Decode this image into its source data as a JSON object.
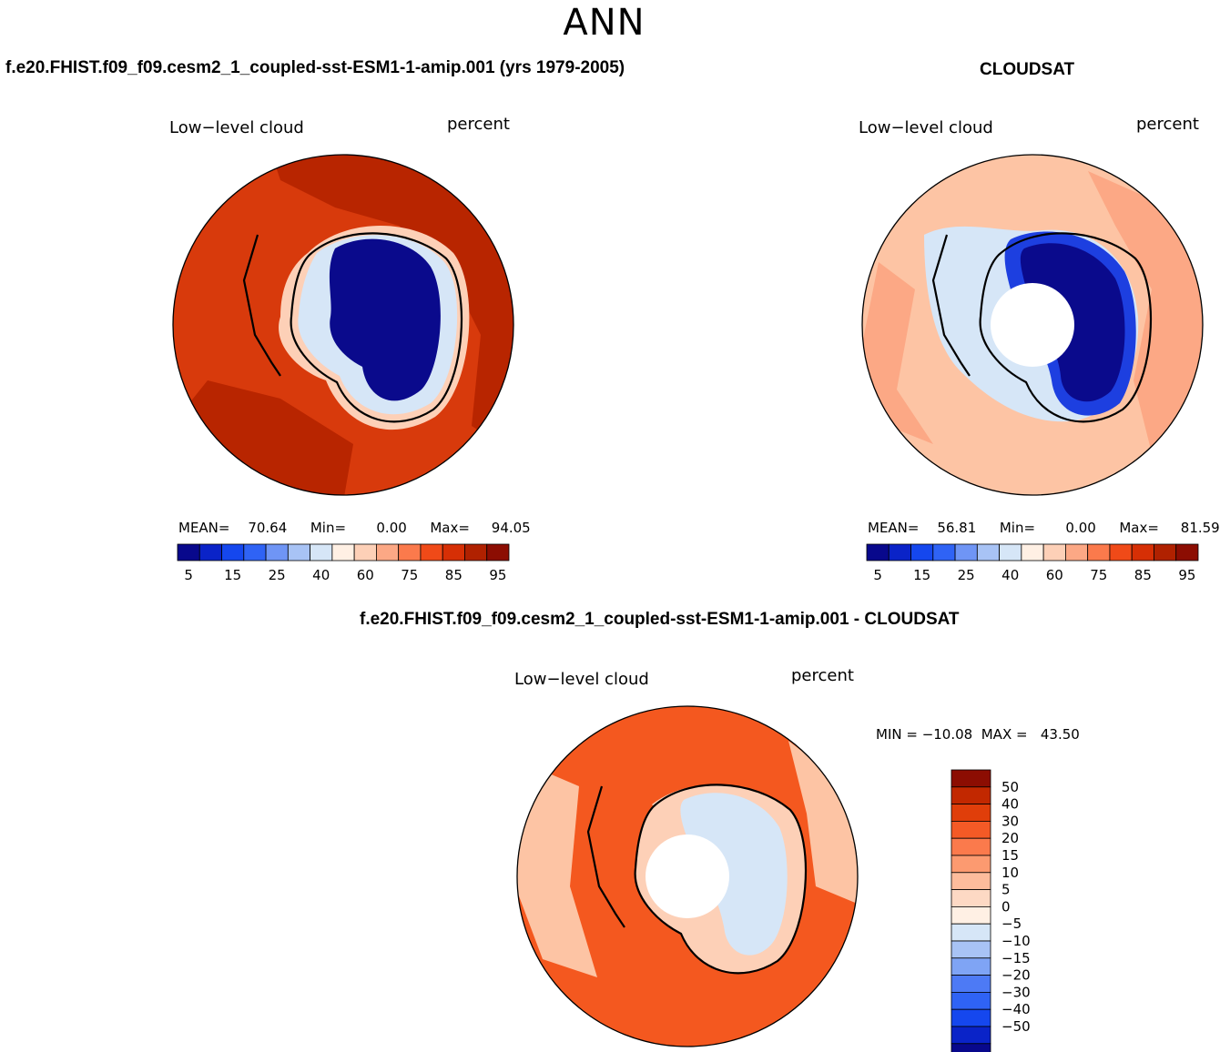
{
  "season": "ANN",
  "colorbar_colors": [
    "#08088c",
    "#0a23c8",
    "#1547ee",
    "#2f63f5",
    "#6f95f5",
    "#a8c3f5",
    "#d6e6f7",
    "#fff0e4",
    "#fdd0b7",
    "#fca885",
    "#fb7a4c",
    "#f04a18",
    "#d62f05",
    "#b02100",
    "#8c0d02"
  ],
  "diff_colors": [
    "#08088c",
    "#0a23c8",
    "#1547ee",
    "#2f63f5",
    "#4d7af5",
    "#7fa4f5",
    "#a8c3f5",
    "#d6e6f7",
    "#fff0e4",
    "#fdd9c4",
    "#fdbc9c",
    "#fc9a70",
    "#fb7a4c",
    "#f45a26",
    "#e03e0a",
    "#c22800",
    "#8c0d02"
  ],
  "contour_shades": {
    "ocean_model": "#d83a0c",
    "ocean_model_dark": "#b82500",
    "ocean_obs": "#fdc4a4",
    "ocean_obs_mid": "#fca885",
    "ocean_diff": "#f4581f",
    "ice_low": "#0a0a8c",
    "ice_lowmid": "#1d3fe0",
    "ice_edge": "#d6e6f7",
    "coast_glow": "#fdd0b7"
  },
  "chart_data": [
    {
      "type": "heatmap",
      "panel": "model",
      "title": "f.e20.FHIST.f09_f09.cesm2_1_coupled-sst-ESM1-1-amip.001 (yrs 1979-2005)",
      "left_label": "Low−level cloud",
      "right_label": "percent",
      "stats": {
        "mean_label": "MEAN=",
        "mean": "70.64",
        "min_label": "Min=",
        "min": "0.00",
        "max_label": "Max=",
        "max": "94.05"
      },
      "colorbar_ticks": [
        "5",
        "15",
        "25",
        "40",
        "60",
        "75",
        "85",
        "95"
      ]
    },
    {
      "type": "heatmap",
      "panel": "obs",
      "title": "CLOUDSAT",
      "left_label": "Low−level cloud",
      "right_label": "percent",
      "stats": {
        "mean_label": "MEAN=",
        "mean": "56.81",
        "min_label": "Min=",
        "min": "0.00",
        "max_label": "Max=",
        "max": "81.59"
      },
      "colorbar_ticks": [
        "5",
        "15",
        "25",
        "40",
        "60",
        "75",
        "85",
        "95"
      ]
    },
    {
      "type": "heatmap",
      "panel": "difference",
      "title": "f.e20.FHIST.f09_f09.cesm2_1_coupled-sst-ESM1-1-amip.001 - CLOUDSAT",
      "left_label": "Low−level cloud",
      "right_label": "percent",
      "stats_text": "MIN = −10.08  MAX =   43.50",
      "colorbar_ticks": [
        "50",
        "40",
        "30",
        "20",
        "15",
        "10",
        "5",
        "0",
        "−5",
        "−10",
        "−15",
        "−20",
        "−30",
        "−40",
        "−50"
      ]
    }
  ]
}
